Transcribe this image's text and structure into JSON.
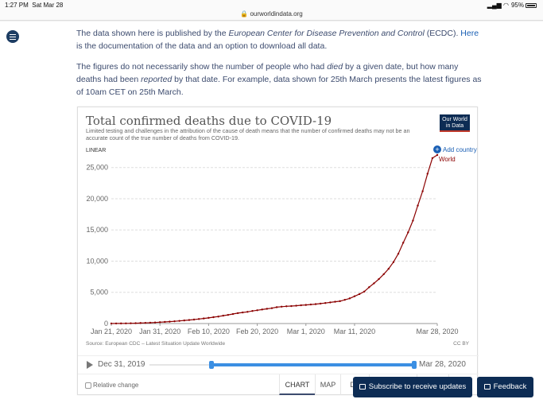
{
  "status": {
    "time": "1:27 PM",
    "date": "Sat Mar 28",
    "battery": "95%"
  },
  "browser": {
    "url": "ourworldindata.org"
  },
  "article": {
    "p1_a": "The data shown here is published by the ",
    "p1_em": "European Center for Disease Prevention and Control",
    "p1_b": " (ECDC). ",
    "p1_link": "Here",
    "p1_c": " is the documentation of the data and an option to download all data.",
    "p2_a": "The figures do not necessarily show the number of people who had ",
    "p2_em1": "died",
    "p2_b": " by a given date, but how many deaths had been ",
    "p2_em2": "reported",
    "p2_c": " by that date. For example, data shown for 25th March presents the latest figures as of 10am CET on 25th March."
  },
  "chart": {
    "logo_line1": "Our World",
    "logo_line2": "in Data",
    "scale_toggle": "LINEAR",
    "add_country": "Add country",
    "source": "Source: European CDC – Latest Situation Update Worldwide",
    "license": "CC BY"
  },
  "timeline": {
    "start": "Dec 31, 2019",
    "end": "Mar 28, 2020"
  },
  "controls": {
    "relative_change": "Relative change",
    "tabs": [
      "CHART",
      "MAP",
      "DA",
      "",
      "",
      ""
    ]
  },
  "buttons": {
    "subscribe": "Subscribe to receive updates",
    "feedback": "Feedback"
  },
  "colors": {
    "accent": "#0d2c54",
    "series": "#8b0000",
    "link": "#1a5fb4"
  },
  "chart_data": {
    "type": "line",
    "title": "Total confirmed deaths due to COVID-19",
    "subtitle": "Limited testing and challenges in the attribution of the cause of death means that the number of confirmed deaths may not be an accurate count of the true number of deaths from COVID-19.",
    "xlabel": "",
    "ylabel": "",
    "ylim": [
      0,
      27000
    ],
    "yticks": [
      0,
      5000,
      10000,
      15000,
      20000,
      25000
    ],
    "ytick_labels": [
      "0",
      "5,000",
      "10,000",
      "15,000",
      "20,000",
      "25,000"
    ],
    "xtick_labels": [
      "Jan 21, 2020",
      "Jan 31, 2020",
      "Feb 10, 2020",
      "Feb 20, 2020",
      "Mar 1, 2020",
      "Mar 11, 2020",
      "Mar 28, 2020"
    ],
    "xtick_dates": [
      "2020-01-21",
      "2020-01-31",
      "2020-02-10",
      "2020-02-20",
      "2020-03-01",
      "2020-03-11",
      "2020-03-28"
    ],
    "grid": true,
    "series": [
      {
        "name": "World",
        "x": [
          "2020-01-21",
          "2020-01-22",
          "2020-01-23",
          "2020-01-24",
          "2020-01-25",
          "2020-01-26",
          "2020-01-27",
          "2020-01-28",
          "2020-01-29",
          "2020-01-30",
          "2020-01-31",
          "2020-02-01",
          "2020-02-02",
          "2020-02-03",
          "2020-02-04",
          "2020-02-05",
          "2020-02-06",
          "2020-02-07",
          "2020-02-08",
          "2020-02-09",
          "2020-02-10",
          "2020-02-11",
          "2020-02-12",
          "2020-02-13",
          "2020-02-14",
          "2020-02-15",
          "2020-02-16",
          "2020-02-17",
          "2020-02-18",
          "2020-02-19",
          "2020-02-20",
          "2020-02-21",
          "2020-02-22",
          "2020-02-23",
          "2020-02-24",
          "2020-02-25",
          "2020-02-26",
          "2020-02-27",
          "2020-02-28",
          "2020-02-29",
          "2020-03-01",
          "2020-03-02",
          "2020-03-03",
          "2020-03-04",
          "2020-03-05",
          "2020-03-06",
          "2020-03-07",
          "2020-03-08",
          "2020-03-09",
          "2020-03-10",
          "2020-03-11",
          "2020-03-12",
          "2020-03-13",
          "2020-03-14",
          "2020-03-15",
          "2020-03-16",
          "2020-03-17",
          "2020-03-18",
          "2020-03-19",
          "2020-03-20",
          "2020-03-21",
          "2020-03-22",
          "2020-03-23",
          "2020-03-24",
          "2020-03-25",
          "2020-03-26",
          "2020-03-27",
          "2020-03-28"
        ],
        "values": [
          6,
          9,
          17,
          26,
          41,
          56,
          80,
          106,
          132,
          170,
          213,
          259,
          304,
          362,
          426,
          492,
          565,
          638,
          724,
          813,
          910,
          1018,
          1115,
          1261,
          1383,
          1526,
          1669,
          1775,
          1873,
          2010,
          2126,
          2247,
          2360,
          2460,
          2618,
          2699,
          2763,
          2800,
          2858,
          2923,
          2977,
          3050,
          3110,
          3198,
          3282,
          3385,
          3491,
          3584,
          3800,
          4030,
          4370,
          4720,
          5120,
          5819,
          6440,
          7126,
          7905,
          8778,
          9840,
          11184,
          12944,
          14600,
          16490,
          18900,
          21200,
          24000,
          26500,
          27000
        ]
      }
    ]
  }
}
